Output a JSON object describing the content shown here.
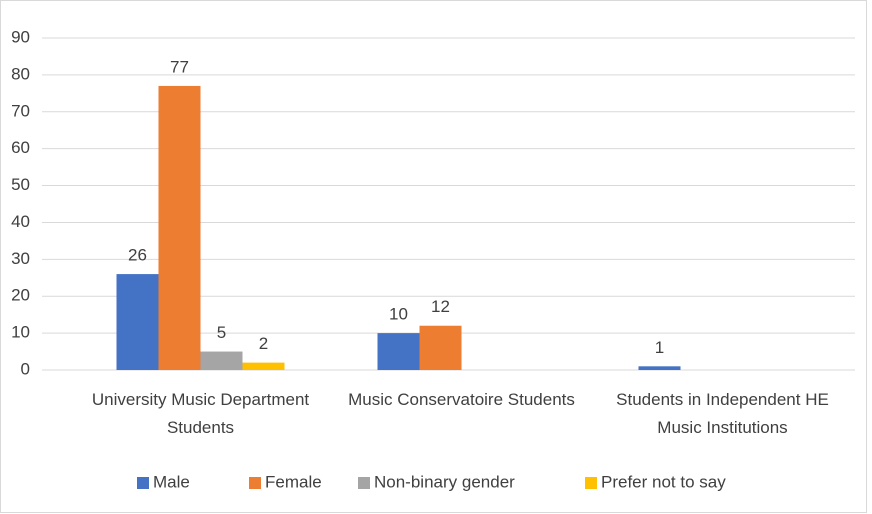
{
  "chart_data": {
    "type": "bar",
    "categories": [
      "University Music Department Students",
      "Music Conservatoire Students",
      "Students in Independent HE Music Institutions"
    ],
    "series": [
      {
        "name": "Male",
        "color": "#4472c4",
        "values": [
          26,
          10,
          1
        ]
      },
      {
        "name": "Female",
        "color": "#ed7d31",
        "values": [
          77,
          12,
          null
        ]
      },
      {
        "name": "Non-binary gender",
        "color": "#a5a5a5",
        "values": [
          5,
          null,
          null
        ]
      },
      {
        "name": "Prefer not to say",
        "color": "#ffc000",
        "values": [
          2,
          null,
          null
        ]
      }
    ],
    "ylim": [
      0,
      90
    ],
    "yticks": [
      0,
      10,
      20,
      30,
      40,
      50,
      60,
      70,
      80,
      90
    ],
    "grid": true,
    "legend": "bottom"
  }
}
